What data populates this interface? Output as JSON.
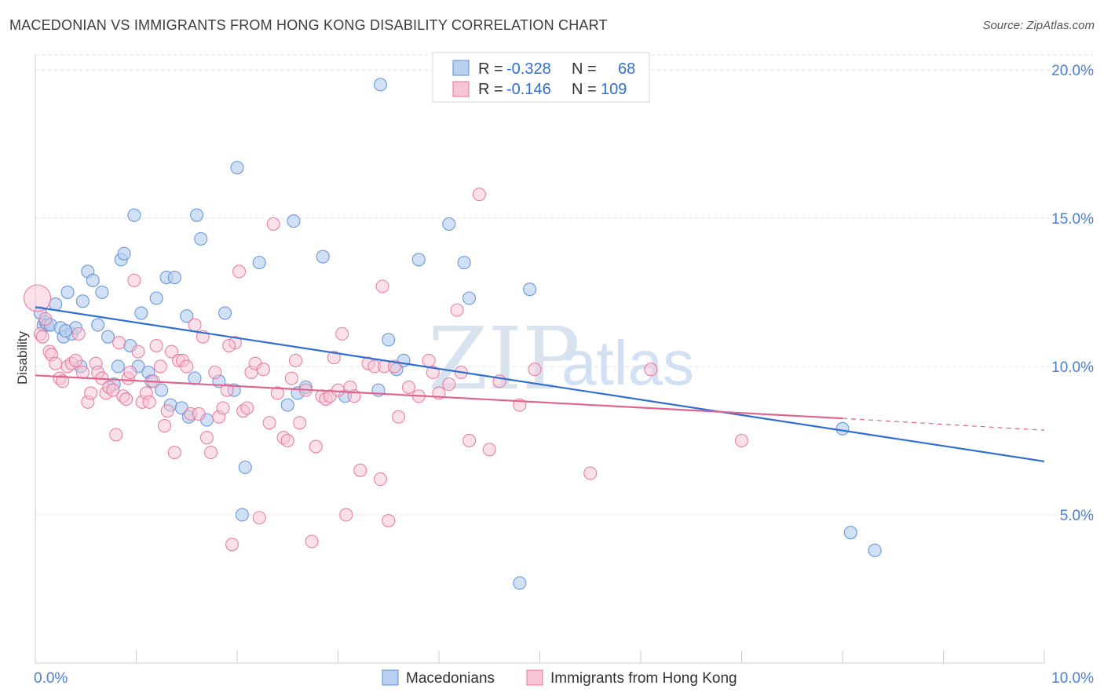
{
  "header": {
    "title": "MACEDONIAN VS IMMIGRANTS FROM HONG KONG DISABILITY CORRELATION CHART",
    "source": "Source: ZipAtlas.com"
  },
  "watermark": {
    "part1": "ZIP",
    "part2": "atlas"
  },
  "legend_top": {
    "rows": [
      {
        "r_label": "R =",
        "r_value": "-0.328",
        "n_label": "N =",
        "n_value": "68",
        "color": "#5b8fd9"
      },
      {
        "r_label": "R =",
        "r_value": "-0.146",
        "n_label": "N =",
        "n_value": "109",
        "color": "#e9729a"
      }
    ]
  },
  "legend_bottom": {
    "items": [
      {
        "label": "Macedonians",
        "color": "#5b8fd9"
      },
      {
        "label": "Immigrants from Hong Kong",
        "color": "#e9729a"
      }
    ]
  },
  "chart_data": {
    "type": "scatter",
    "title": "MACEDONIAN VS IMMIGRANTS FROM HONG KONG DISABILITY CORRELATION CHART",
    "xlabel": "",
    "ylabel": "Disability",
    "xlim": [
      0,
      10
    ],
    "ylim": [
      0,
      20.5
    ],
    "x_tick_labels": [
      "0.0%",
      "10.0%"
    ],
    "y_ticks": [
      5,
      10,
      15,
      20
    ],
    "y_tick_labels": [
      "5.0%",
      "10.0%",
      "15.0%",
      "20.0%"
    ],
    "grid": true,
    "series": [
      {
        "name": "Macedonians",
        "color": "#5b8fd9",
        "fill": "#b9cff0",
        "trend": {
          "x": [
            0,
            10
          ],
          "y": [
            12.0,
            6.8
          ]
        },
        "points": [
          [
            0.05,
            11.8
          ],
          [
            0.08,
            11.4
          ],
          [
            0.1,
            11.5
          ],
          [
            0.12,
            11.4
          ],
          [
            0.15,
            11.4
          ],
          [
            0.2,
            12.1
          ],
          [
            0.25,
            11.3
          ],
          [
            0.28,
            11.0
          ],
          [
            0.32,
            12.5
          ],
          [
            0.36,
            11.1
          ],
          [
            0.4,
            11.3
          ],
          [
            0.45,
            10.0
          ],
          [
            0.47,
            12.2
          ],
          [
            0.52,
            13.2
          ],
          [
            0.57,
            12.9
          ],
          [
            0.62,
            11.4
          ],
          [
            0.66,
            12.5
          ],
          [
            0.72,
            11.0
          ],
          [
            0.78,
            9.4
          ],
          [
            0.82,
            10.0
          ],
          [
            0.85,
            13.6
          ],
          [
            0.88,
            13.8
          ],
          [
            0.94,
            10.7
          ],
          [
            0.98,
            15.1
          ],
          [
            1.02,
            10.0
          ],
          [
            1.05,
            11.8
          ],
          [
            1.12,
            9.8
          ],
          [
            1.15,
            9.5
          ],
          [
            1.2,
            12.3
          ],
          [
            1.25,
            9.2
          ],
          [
            1.3,
            13.0
          ],
          [
            1.34,
            8.7
          ],
          [
            1.38,
            13.0
          ],
          [
            1.45,
            8.6
          ],
          [
            1.5,
            11.7
          ],
          [
            1.52,
            8.3
          ],
          [
            1.58,
            9.6
          ],
          [
            1.6,
            15.1
          ],
          [
            1.64,
            14.3
          ],
          [
            1.7,
            8.2
          ],
          [
            1.82,
            9.5
          ],
          [
            1.88,
            11.8
          ],
          [
            1.97,
            9.2
          ],
          [
            2.0,
            16.7
          ],
          [
            2.05,
            5.0
          ],
          [
            2.08,
            6.6
          ],
          [
            2.22,
            13.5
          ],
          [
            2.5,
            8.7
          ],
          [
            2.56,
            14.9
          ],
          [
            2.6,
            9.1
          ],
          [
            2.68,
            9.3
          ],
          [
            2.85,
            13.7
          ],
          [
            3.07,
            9.0
          ],
          [
            3.4,
            9.2
          ],
          [
            3.42,
            19.5
          ],
          [
            3.5,
            10.9
          ],
          [
            3.58,
            9.9
          ],
          [
            3.65,
            10.2
          ],
          [
            3.8,
            13.6
          ],
          [
            4.1,
            14.8
          ],
          [
            4.25,
            13.5
          ],
          [
            4.3,
            12.3
          ],
          [
            4.8,
            2.7
          ],
          [
            4.9,
            12.6
          ],
          [
            8.0,
            7.9
          ],
          [
            8.08,
            4.4
          ],
          [
            8.32,
            3.8
          ],
          [
            0.3,
            11.2
          ]
        ]
      },
      {
        "name": "Immigrants from Hong Kong",
        "color": "#e9729a",
        "fill": "#f6c4d4",
        "trend": {
          "x": [
            0,
            8.0
          ],
          "y": [
            9.7,
            8.25
          ]
        },
        "trend_dashed": {
          "x": [
            8.0,
            10.0
          ],
          "y": [
            8.25,
            7.85
          ]
        },
        "points": [
          [
            0.02,
            12.3
          ],
          [
            0.05,
            11.1
          ],
          [
            0.07,
            11.0
          ],
          [
            0.1,
            11.6
          ],
          [
            0.14,
            10.5
          ],
          [
            0.16,
            10.4
          ],
          [
            0.2,
            10.1
          ],
          [
            0.24,
            9.6
          ],
          [
            0.27,
            9.5
          ],
          [
            0.32,
            10.0
          ],
          [
            0.36,
            10.1
          ],
          [
            0.4,
            10.2
          ],
          [
            0.43,
            11.1
          ],
          [
            0.47,
            9.8
          ],
          [
            0.52,
            8.8
          ],
          [
            0.55,
            9.1
          ],
          [
            0.6,
            10.1
          ],
          [
            0.62,
            9.8
          ],
          [
            0.66,
            9.6
          ],
          [
            0.7,
            9.1
          ],
          [
            0.73,
            9.3
          ],
          [
            0.77,
            9.2
          ],
          [
            0.8,
            7.7
          ],
          [
            0.83,
            10.8
          ],
          [
            0.87,
            9.0
          ],
          [
            0.9,
            8.9
          ],
          [
            0.92,
            9.6
          ],
          [
            0.94,
            9.8
          ],
          [
            0.98,
            12.9
          ],
          [
            1.02,
            10.5
          ],
          [
            1.06,
            8.8
          ],
          [
            1.1,
            9.1
          ],
          [
            1.13,
            8.8
          ],
          [
            1.17,
            9.5
          ],
          [
            1.2,
            10.7
          ],
          [
            1.24,
            10.0
          ],
          [
            1.28,
            8.0
          ],
          [
            1.31,
            8.5
          ],
          [
            1.35,
            10.5
          ],
          [
            1.38,
            7.1
          ],
          [
            1.42,
            10.2
          ],
          [
            1.46,
            10.2
          ],
          [
            1.5,
            10.0
          ],
          [
            1.54,
            8.4
          ],
          [
            1.58,
            11.4
          ],
          [
            1.62,
            8.4
          ],
          [
            1.66,
            11.0
          ],
          [
            1.7,
            7.6
          ],
          [
            1.74,
            7.1
          ],
          [
            1.78,
            9.8
          ],
          [
            1.82,
            8.3
          ],
          [
            1.86,
            8.6
          ],
          [
            1.9,
            9.2
          ],
          [
            1.95,
            4.0
          ],
          [
            1.98,
            10.8
          ],
          [
            2.02,
            13.2
          ],
          [
            2.06,
            8.5
          ],
          [
            2.1,
            8.6
          ],
          [
            2.14,
            9.8
          ],
          [
            2.18,
            10.1
          ],
          [
            2.22,
            4.9
          ],
          [
            2.26,
            9.9
          ],
          [
            2.32,
            8.1
          ],
          [
            2.36,
            14.8
          ],
          [
            2.4,
            9.1
          ],
          [
            2.46,
            7.6
          ],
          [
            2.5,
            7.5
          ],
          [
            2.54,
            9.6
          ],
          [
            2.58,
            10.2
          ],
          [
            2.62,
            8.1
          ],
          [
            2.68,
            9.2
          ],
          [
            2.74,
            4.1
          ],
          [
            2.78,
            7.3
          ],
          [
            2.84,
            9.0
          ],
          [
            2.88,
            8.9
          ],
          [
            2.92,
            9.0
          ],
          [
            2.96,
            10.3
          ],
          [
            3.0,
            9.2
          ],
          [
            3.04,
            11.1
          ],
          [
            3.08,
            5.0
          ],
          [
            3.12,
            9.3
          ],
          [
            3.16,
            9.0
          ],
          [
            3.22,
            6.5
          ],
          [
            3.3,
            10.1
          ],
          [
            3.36,
            10.0
          ],
          [
            3.42,
            6.2
          ],
          [
            3.46,
            10.0
          ],
          [
            3.5,
            4.8
          ],
          [
            3.56,
            10.0
          ],
          [
            3.6,
            8.3
          ],
          [
            3.7,
            9.3
          ],
          [
            3.8,
            9.0
          ],
          [
            3.9,
            10.2
          ],
          [
            3.94,
            9.8
          ],
          [
            4.0,
            9.1
          ],
          [
            4.1,
            9.4
          ],
          [
            4.18,
            11.9
          ],
          [
            4.22,
            9.8
          ],
          [
            4.3,
            7.5
          ],
          [
            4.4,
            15.8
          ],
          [
            4.5,
            7.2
          ],
          [
            4.6,
            9.5
          ],
          [
            4.8,
            8.7
          ],
          [
            4.95,
            9.9
          ],
          [
            5.5,
            6.4
          ],
          [
            6.1,
            9.9
          ],
          [
            7.0,
            7.5
          ],
          [
            3.44,
            12.7
          ],
          [
            1.92,
            10.7
          ]
        ]
      }
    ]
  }
}
